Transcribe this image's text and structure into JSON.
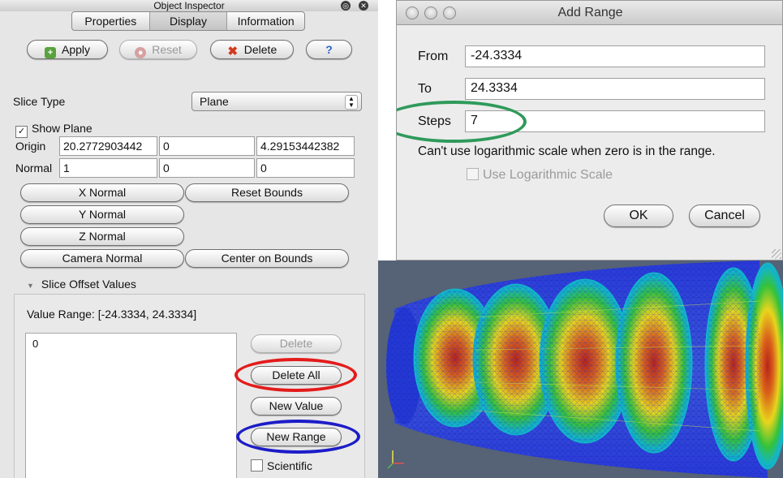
{
  "inspector": {
    "title": "Object Inspector",
    "tabs": [
      "Properties",
      "Display",
      "Information"
    ],
    "active_tab": "Display",
    "buttons": {
      "apply": "Apply",
      "reset": "Reset",
      "delete": "Delete",
      "help": "?"
    },
    "slice_type_label": "Slice Type",
    "slice_type_value": "Plane",
    "show_plane_label": "Show Plane",
    "show_plane_checked": true,
    "origin_label": "Origin",
    "origin": [
      "20.2772903442",
      "0",
      "4.29153442382"
    ],
    "normal_label": "Normal",
    "normal": [
      "1",
      "0",
      "0"
    ],
    "plane_buttons": {
      "x_normal": "X Normal",
      "reset_bounds": "Reset Bounds",
      "y_normal": "Y Normal",
      "z_normal": "Z Normal",
      "camera_normal": "Camera Normal",
      "center_on_bounds": "Center on Bounds"
    },
    "offset_section_title": "Slice Offset Values",
    "value_range": "Value Range: [-24.3334, 24.3334]",
    "values": [
      "0"
    ],
    "list_buttons": {
      "delete": "Delete",
      "delete_all": "Delete All",
      "new_value": "New Value",
      "new_range": "New Range"
    },
    "scientific_label": "Scientific"
  },
  "add_range": {
    "title": "Add Range",
    "from_label": "From",
    "from_value": "-24.3334",
    "to_label": "To",
    "to_value": "24.3334",
    "steps_label": "Steps",
    "steps_value": "7",
    "log_message": "Can't use logarithmic scale when zero is in the range.",
    "log_checkbox_label": "Use Logarithmic Scale",
    "ok": "OK",
    "cancel": "Cancel"
  },
  "highlight_colors": {
    "delete_all_ring": "#e31b1b",
    "new_range_ring": "#1c1cc8",
    "steps_ring": "#2e9a5a"
  },
  "icons": {
    "apply": "apply-plus-icon",
    "reset": "reset-icon",
    "delete": "delete-x-icon",
    "help": "help-question-icon"
  },
  "viewport": {
    "description_colors": [
      "#1a2fd0",
      "#13b5c8",
      "#35c23a",
      "#e8d51c",
      "#d9621b",
      "#b8221a"
    ]
  }
}
